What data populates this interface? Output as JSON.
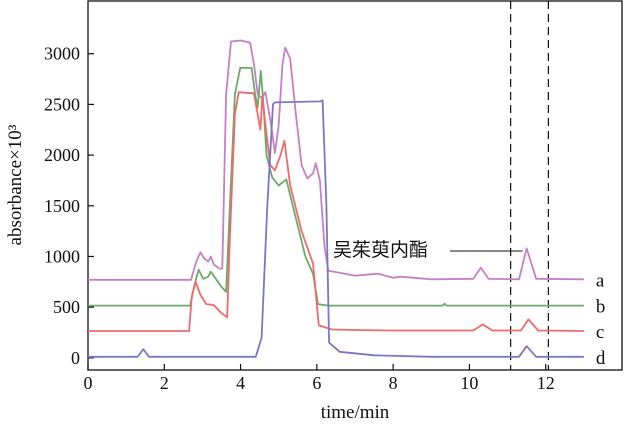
{
  "chart_data": {
    "type": "line",
    "title": "",
    "xlabel": "time/min",
    "ylabel": "absorbance×10³",
    "xlim": [
      0,
      14
    ],
    "ylim": [
      -120,
      3520
    ],
    "xticks": [
      0,
      2,
      4,
      6,
      8,
      10,
      12
    ],
    "yticks": [
      0,
      500,
      1000,
      1500,
      2000,
      2500,
      3000
    ],
    "grid": false,
    "annotation": {
      "text": "吴茱萸内酯",
      "points_to_time": 11.5
    },
    "dashed_lines_x": [
      11.08,
      12.07
    ],
    "series": [
      {
        "name": "a",
        "color": "#c77fc7",
        "points": [
          [
            0,
            770
          ],
          [
            2.7,
            770
          ],
          [
            2.85,
            960
          ],
          [
            2.95,
            1040
          ],
          [
            3.05,
            980
          ],
          [
            3.15,
            950
          ],
          [
            3.22,
            1000
          ],
          [
            3.3,
            920
          ],
          [
            3.45,
            880
          ],
          [
            3.52,
            880
          ],
          [
            3.62,
            2600
          ],
          [
            3.75,
            3120
          ],
          [
            4.0,
            3130
          ],
          [
            4.25,
            3110
          ],
          [
            4.35,
            2900
          ],
          [
            4.45,
            2600
          ],
          [
            4.55,
            2560
          ],
          [
            4.65,
            2620
          ],
          [
            4.8,
            2300
          ],
          [
            4.9,
            2020
          ],
          [
            5.0,
            2300
          ],
          [
            5.1,
            2900
          ],
          [
            5.17,
            3060
          ],
          [
            5.3,
            2950
          ],
          [
            5.45,
            2400
          ],
          [
            5.6,
            1900
          ],
          [
            5.75,
            1770
          ],
          [
            5.9,
            1820
          ],
          [
            5.97,
            1920
          ],
          [
            6.08,
            1750
          ],
          [
            6.2,
            1100
          ],
          [
            6.3,
            860
          ],
          [
            6.6,
            840
          ],
          [
            7.0,
            810
          ],
          [
            7.6,
            830
          ],
          [
            8.0,
            790
          ],
          [
            8.2,
            800
          ],
          [
            9.0,
            775
          ],
          [
            10.1,
            780
          ],
          [
            10.3,
            890
          ],
          [
            10.5,
            780
          ],
          [
            11.3,
            775
          ],
          [
            11.5,
            1080
          ],
          [
            11.75,
            780
          ],
          [
            13.0,
            775
          ]
        ]
      },
      {
        "name": "b",
        "color": "#6aab6a",
        "points": [
          [
            0,
            515
          ],
          [
            2.68,
            515
          ],
          [
            2.78,
            700
          ],
          [
            2.9,
            870
          ],
          [
            3.02,
            780
          ],
          [
            3.15,
            800
          ],
          [
            3.22,
            850
          ],
          [
            3.35,
            780
          ],
          [
            3.5,
            700
          ],
          [
            3.62,
            650
          ],
          [
            3.72,
            1500
          ],
          [
            3.85,
            2600
          ],
          [
            3.99,
            2860
          ],
          [
            4.29,
            2860
          ],
          [
            4.38,
            2600
          ],
          [
            4.45,
            2470
          ],
          [
            4.53,
            2830
          ],
          [
            4.6,
            2500
          ],
          [
            4.68,
            2000
          ],
          [
            4.83,
            1780
          ],
          [
            5.0,
            1700
          ],
          [
            5.2,
            1760
          ],
          [
            5.4,
            1450
          ],
          [
            5.7,
            1000
          ],
          [
            5.9,
            830
          ],
          [
            6.03,
            530
          ],
          [
            6.3,
            515
          ],
          [
            9.3,
            515
          ],
          [
            9.35,
            535
          ],
          [
            9.4,
            515
          ],
          [
            13.0,
            515
          ]
        ]
      },
      {
        "name": "c",
        "color": "#f06a6a",
        "points": [
          [
            0,
            265
          ],
          [
            2.65,
            265
          ],
          [
            2.72,
            600
          ],
          [
            2.82,
            750
          ],
          [
            2.95,
            620
          ],
          [
            3.1,
            530
          ],
          [
            3.3,
            520
          ],
          [
            3.5,
            440
          ],
          [
            3.65,
            400
          ],
          [
            3.72,
            1200
          ],
          [
            3.85,
            2400
          ],
          [
            3.95,
            2620
          ],
          [
            4.35,
            2610
          ],
          [
            4.45,
            2400
          ],
          [
            4.52,
            2250
          ],
          [
            4.57,
            2580
          ],
          [
            4.65,
            2300
          ],
          [
            4.78,
            1900
          ],
          [
            4.9,
            1850
          ],
          [
            5.05,
            2000
          ],
          [
            5.15,
            2140
          ],
          [
            5.3,
            1700
          ],
          [
            5.6,
            1250
          ],
          [
            5.9,
            930
          ],
          [
            6.05,
            320
          ],
          [
            6.4,
            280
          ],
          [
            7.0,
            275
          ],
          [
            8.0,
            270
          ],
          [
            10.1,
            270
          ],
          [
            10.35,
            330
          ],
          [
            10.6,
            270
          ],
          [
            11.35,
            270
          ],
          [
            11.55,
            380
          ],
          [
            11.8,
            270
          ],
          [
            13.0,
            265
          ]
        ]
      },
      {
        "name": "d",
        "color": "#7a76c8",
        "points": [
          [
            0,
            10
          ],
          [
            1.3,
            10
          ],
          [
            1.45,
            85
          ],
          [
            1.6,
            10
          ],
          [
            4.4,
            10
          ],
          [
            4.55,
            200
          ],
          [
            4.7,
            1500
          ],
          [
            4.85,
            2500
          ],
          [
            4.9,
            2520
          ],
          [
            6.1,
            2530
          ],
          [
            6.15,
            2540
          ],
          [
            6.25,
            1500
          ],
          [
            6.32,
            150
          ],
          [
            6.6,
            60
          ],
          [
            7.5,
            25
          ],
          [
            9.0,
            10
          ],
          [
            11.3,
            10
          ],
          [
            11.5,
            115
          ],
          [
            11.75,
            10
          ],
          [
            13.0,
            10
          ]
        ]
      }
    ]
  }
}
